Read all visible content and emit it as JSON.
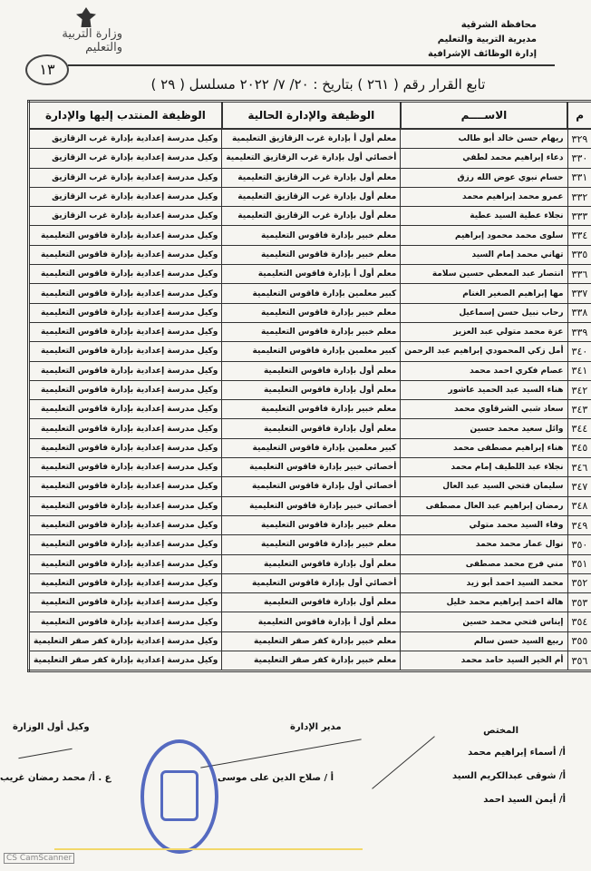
{
  "header": {
    "line1": "محافظة الشرقية",
    "line2": "مديرية التربية والتعليم",
    "line3": "إدارة الوظائف الإشرافية",
    "page_number": "١٣"
  },
  "title": "تابع القرار رقم ( ٢٦١ ) بتاريخ : ٢٠/ ٧/ ٢٠٢٢ مسلسل ( ٢٩ )",
  "table": {
    "headers": [
      "م",
      "الاســــم",
      "الوظيفة والإدارة الحالية",
      "الوظيفة المنتدب إليها والإدارة"
    ],
    "rows": [
      [
        "٣٢٩",
        "ريهام حسن خالد أبو طالب",
        "معلم أول أ بإدارة غرب الزقازيق التعليمية",
        "وكيل مدرسة إعدادية بإدارة غرب الزقازيق"
      ],
      [
        "٣٣٠",
        "دعاء إبراهيم محمد لطفي",
        "أخصائي أول بإدارة غرب الزقازيق التعليمية",
        "وكيل مدرسة إعدادية بإدارة غرب الزقازيق"
      ],
      [
        "٣٣١",
        "حسام نبوي عوض الله رزق",
        "معلم أول بإدارة غرب الزقازيق التعليمية",
        "وكيل مدرسة إعدادية بإدارة غرب الزقازيق"
      ],
      [
        "٣٣٢",
        "عمرو محمد إبراهيم محمد",
        "معلم أول بإدارة غرب الزقازيق التعليمية",
        "وكيل مدرسة إعدادية بإدارة غرب الزقازيق"
      ],
      [
        "٣٣٣",
        "نجلاء عطية السيد عطية",
        "معلم أول بإدارة غرب الزقازيق التعليمية",
        "وكيل مدرسة إعدادية بإدارة غرب الزقازيق"
      ],
      [
        "٣٣٤",
        "سلوى محمد محمود إبراهيم",
        "معلم خبير بإدارة فاقوس التعليمية",
        "وكيل مدرسة إعدادية بإدارة فاقوس التعليمية"
      ],
      [
        "٣٣٥",
        "تهاني محمد إمام السيد",
        "معلم خبير بإدارة فاقوس التعليمية",
        "وكيل مدرسة إعدادية بإدارة فاقوس التعليمية"
      ],
      [
        "٣٣٦",
        "انتصار عبد المعطي حسين سلامة",
        "معلم أول أ بإدارة فاقوس التعليمية",
        "وكيل مدرسة إعدادية بإدارة فاقوس التعليمية"
      ],
      [
        "٣٣٧",
        "مها إبراهيم الصغير الغنام",
        "كبير معلمين بإدارة فاقوس التعليمية",
        "وكيل مدرسة إعدادية بإدارة فاقوس التعليمية"
      ],
      [
        "٣٣٨",
        "رحاب نبيل حسن إسماعيل",
        "معلم خبير بإدارة فاقوس التعليمية",
        "وكيل مدرسة إعدادية بإدارة فاقوس التعليمية"
      ],
      [
        "٣٣٩",
        "عزة محمد متولي عبد العزيز",
        "معلم خبير بإدارة فاقوس التعليمية",
        "وكيل مدرسة إعدادية بإدارة فاقوس التعليمية"
      ],
      [
        "٣٤٠",
        "أمل زكي المحمودي إبراهيم عبد الرحمن",
        "كبير معلمين بإدارة فاقوس التعليمية",
        "وكيل مدرسة إعدادية بإدارة فاقوس التعليمية"
      ],
      [
        "٣٤١",
        "عصام فكري احمد محمد",
        "معلم أول بإدارة فاقوس التعليمية",
        "وكيل مدرسة إعدادية بإدارة فاقوس التعليمية"
      ],
      [
        "٣٤٢",
        "هناء السيد عبد الحميد عاشور",
        "معلم أول بإدارة فاقوس التعليمية",
        "وكيل مدرسة إعدادية بإدارة فاقوس التعليمية"
      ],
      [
        "٣٤٣",
        "سعاد شبي الشرقاوي محمد",
        "معلم خبير بإدارة فاقوس التعليمية",
        "وكيل مدرسة إعدادية بإدارة فاقوس التعليمية"
      ],
      [
        "٣٤٤",
        "وائل سعيد محمد حسين",
        "معلم أول بإدارة فاقوس التعليمية",
        "وكيل مدرسة إعدادية بإدارة فاقوس التعليمية"
      ],
      [
        "٣٤٥",
        "هناء إبراهيم مصطفى محمد",
        "كبير معلمين بإدارة فاقوس التعليمية",
        "وكيل مدرسة إعدادية بإدارة فاقوس التعليمية"
      ],
      [
        "٣٤٦",
        "نجلاء عبد اللطيف إمام محمد",
        "أخصائي خبير بإدارة فاقوس التعليمية",
        "وكيل مدرسة إعدادية بإدارة فاقوس التعليمية"
      ],
      [
        "٣٤٧",
        "سليمان فتحي السيد عبد العال",
        "أخصائي أول بإدارة فاقوس التعليمية",
        "وكيل مدرسة إعدادية بإدارة فاقوس التعليمية"
      ],
      [
        "٣٤٨",
        "رمضان إبراهيم عبد العال مصطفى",
        "أخصائي خبير بإدارة فاقوس التعليمية",
        "وكيل مدرسة إعدادية بإدارة فاقوس التعليمية"
      ],
      [
        "٣٤٩",
        "وفاء السيد محمد متولي",
        "معلم خبير بإدارة فاقوس التعليمية",
        "وكيل مدرسة إعدادية بإدارة فاقوس التعليمية"
      ],
      [
        "٣٥٠",
        "نوال عمار محمد محمد",
        "معلم خبير بإدارة فاقوس التعليمية",
        "وكيل مدرسة إعدادية بإدارة فاقوس التعليمية"
      ],
      [
        "٣٥١",
        "مني فرج محمد مصطفى",
        "معلم أول بإدارة فاقوس التعليمية",
        "وكيل مدرسة إعدادية بإدارة فاقوس التعليمية"
      ],
      [
        "٣٥٢",
        "محمد السيد احمد أبو زيد",
        "أخصائي أول بإدارة فاقوس التعليمية",
        "وكيل مدرسة إعدادية بإدارة فاقوس التعليمية"
      ],
      [
        "٣٥٣",
        "هالة احمد إبراهيم محمد خليل",
        "معلم أول بإدارة فاقوس التعليمية",
        "وكيل مدرسة إعدادية بإدارة فاقوس التعليمية"
      ],
      [
        "٣٥٤",
        "إيناس فتحي محمد حسين",
        "معلم أول أ بإدارة فاقوس التعليمية",
        "وكيل مدرسة إعدادية بإدارة فاقوس التعليمية"
      ],
      [
        "٣٥٥",
        "ربيع السيد حسن سالم",
        "معلم خبير بإدارة كفر صقر التعليمية",
        "وكيل مدرسة إعدادية بإدارة كفر صقر التعليمية"
      ],
      [
        "٣٥٦",
        "أم الخير السيد حامد محمد",
        "معلم خبير بإدارة كفر صقر التعليمية",
        "وكيل مدرسة إعدادية بإدارة كفر صقر التعليمية"
      ]
    ]
  },
  "signatures": {
    "specialist_title": "المختص",
    "specialists": [
      "أ/ أسماء إبراهيم محمد",
      "أ/ شوقى عبدالكريم السيد",
      "أ/ أيمن السيد احمد"
    ],
    "director_title": "مدير الإدارة",
    "director_name": "أ / صلاح الدين على موسى",
    "undersecretary_title": "وكيل أول الوزارة",
    "undersecretary_name": "ع . أ/ محمد رمضان غريب"
  },
  "logo_text": "وزارة التربية والتعليم",
  "stamp_color": "#3a52b8",
  "scanner_mark": "CS CamScanner"
}
